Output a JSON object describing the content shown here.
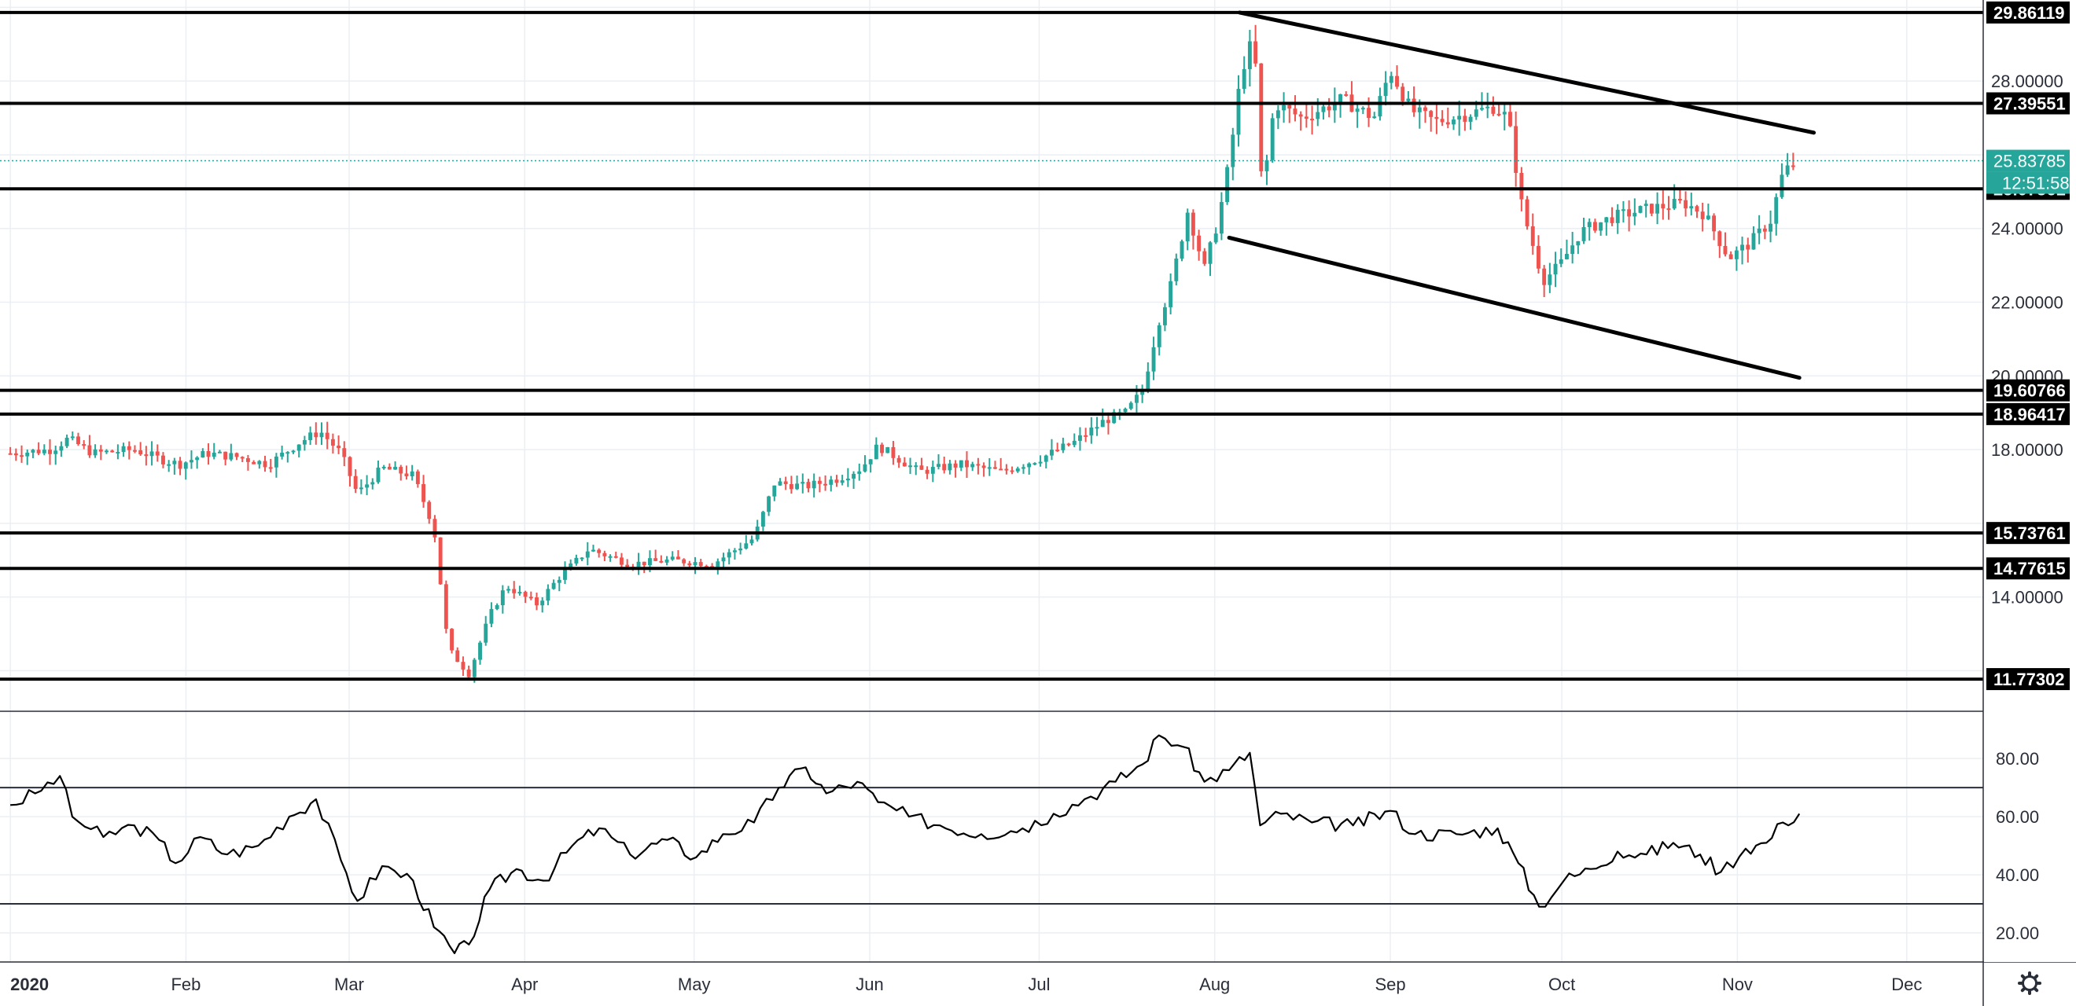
{
  "chart_data": {
    "type": "candlestick",
    "price_axis": {
      "range": [
        10.9,
        30.2
      ],
      "ticks": [
        "28.00000",
        "24.00000",
        "22.00000",
        "20.00000",
        "18.00000",
        "14.00000"
      ]
    },
    "current_price": {
      "label": "25.83785",
      "value": 25.83785,
      "timer": "12:51:58"
    },
    "levels": [
      {
        "label": "29.86119",
        "value": 29.86119
      },
      {
        "label": "27.39551",
        "value": 27.39551
      },
      {
        "label": "25.07561",
        "value": 25.07561
      },
      {
        "label": "19.60766",
        "value": 19.60766
      },
      {
        "label": "18.96417",
        "value": 18.96417
      },
      {
        "label": "15.73761",
        "value": 15.73761
      },
      {
        "label": "14.77615",
        "value": 14.77615
      },
      {
        "label": "11.77302",
        "value": 11.77302
      }
    ],
    "trendlines": [
      {
        "from": [
          2020.595,
          29.86
        ],
        "to": [
          2020.873,
          26.6
        ]
      },
      {
        "from": [
          2020.59,
          23.75
        ],
        "to": [
          2020.866,
          19.95
        ]
      }
    ],
    "time_axis": {
      "range": [
        2019.995,
        2020.955
      ],
      "labels": [
        {
          "text": "2020",
          "x": 2020.0
        },
        {
          "text": "Feb",
          "x": 2020.085
        },
        {
          "text": "Mar",
          "x": 2020.164
        },
        {
          "text": "Apr",
          "x": 2020.249
        },
        {
          "text": "May",
          "x": 2020.331
        },
        {
          "text": "Jun",
          "x": 2020.416
        },
        {
          "text": "Jul",
          "x": 2020.498
        },
        {
          "text": "Aug",
          "x": 2020.583
        },
        {
          "text": "Sep",
          "x": 2020.668
        },
        {
          "text": "Oct",
          "x": 2020.751
        },
        {
          "text": "Nov",
          "x": 2020.836
        },
        {
          "text": "Dec",
          "x": 2020.918
        }
      ]
    },
    "price_path": [
      [
        2020.0,
        17.9
      ],
      [
        2020.02,
        18.0
      ],
      [
        2020.028,
        18.3
      ],
      [
        2020.04,
        17.9
      ],
      [
        2020.06,
        18.0
      ],
      [
        2020.075,
        17.7
      ],
      [
        2020.082,
        17.6
      ],
      [
        2020.095,
        17.9
      ],
      [
        2020.11,
        17.8
      ],
      [
        2020.125,
        17.6
      ],
      [
        2020.14,
        18.2
      ],
      [
        2020.15,
        18.5
      ],
      [
        2020.16,
        17.9
      ],
      [
        2020.168,
        16.8
      ],
      [
        2020.18,
        17.5
      ],
      [
        2020.195,
        17.3
      ],
      [
        2020.205,
        15.9
      ],
      [
        2020.212,
        12.6
      ],
      [
        2020.222,
        11.9
      ],
      [
        2020.232,
        13.5
      ],
      [
        2020.24,
        14.3
      ],
      [
        2020.255,
        13.8
      ],
      [
        2020.265,
        14.5
      ],
      [
        2020.28,
        15.3
      ],
      [
        2020.3,
        14.9
      ],
      [
        2020.32,
        15.0
      ],
      [
        2020.34,
        14.9
      ],
      [
        2020.36,
        15.6
      ],
      [
        2020.37,
        17.1
      ],
      [
        2020.385,
        17.0
      ],
      [
        2020.4,
        17.2
      ],
      [
        2020.412,
        17.5
      ],
      [
        2020.42,
        18.1
      ],
      [
        2020.44,
        17.4
      ],
      [
        2020.46,
        17.6
      ],
      [
        2020.48,
        17.4
      ],
      [
        2020.5,
        17.8
      ],
      [
        2020.515,
        18.2
      ],
      [
        2020.53,
        18.8
      ],
      [
        2020.54,
        19.0
      ],
      [
        2020.548,
        19.6
      ],
      [
        2020.556,
        21.5
      ],
      [
        2020.562,
        22.5
      ],
      [
        2020.57,
        24.5
      ],
      [
        2020.578,
        22.9
      ],
      [
        2020.585,
        24.3
      ],
      [
        2020.59,
        25.8
      ],
      [
        2020.596,
        28.3
      ],
      [
        2020.602,
        29.2
      ],
      [
        2020.606,
        24.9
      ],
      [
        2020.612,
        27.4
      ],
      [
        2020.625,
        27.0
      ],
      [
        2020.645,
        27.5
      ],
      [
        2020.66,
        27.0
      ],
      [
        2020.668,
        28.3
      ],
      [
        2020.678,
        27.2
      ],
      [
        2020.69,
        26.9
      ],
      [
        2020.705,
        27.1
      ],
      [
        2020.718,
        27.3
      ],
      [
        2020.725,
        27.0
      ],
      [
        2020.732,
        24.5
      ],
      [
        2020.742,
        22.6
      ],
      [
        2020.75,
        23.0
      ],
      [
        2020.76,
        23.9
      ],
      [
        2020.775,
        24.3
      ],
      [
        2020.79,
        24.5
      ],
      [
        2020.8,
        24.6
      ],
      [
        2020.81,
        24.7
      ],
      [
        2020.82,
        24.4
      ],
      [
        2020.832,
        23.2
      ],
      [
        2020.842,
        23.6
      ],
      [
        2020.852,
        24.2
      ],
      [
        2020.858,
        25.5
      ],
      [
        2020.865,
        25.84
      ]
    ],
    "rsi": {
      "range": [
        10,
        96
      ],
      "ticks": [
        "80.00",
        "60.00",
        "40.00",
        "20.00"
      ],
      "bands": [
        70,
        30
      ],
      "values": [
        [
          2020.0,
          64
        ],
        [
          2020.012,
          68
        ],
        [
          2020.024,
          74
        ],
        [
          2020.03,
          60
        ],
        [
          2020.045,
          53
        ],
        [
          2020.06,
          57
        ],
        [
          2020.072,
          52
        ],
        [
          2020.08,
          44
        ],
        [
          2020.092,
          53
        ],
        [
          2020.105,
          47
        ],
        [
          2020.12,
          50
        ],
        [
          2020.135,
          60
        ],
        [
          2020.148,
          66
        ],
        [
          2020.16,
          45
        ],
        [
          2020.168,
          31
        ],
        [
          2020.18,
          43
        ],
        [
          2020.195,
          38
        ],
        [
          2020.205,
          22
        ],
        [
          2020.215,
          13
        ],
        [
          2020.222,
          16
        ],
        [
          2020.232,
          35
        ],
        [
          2020.245,
          42
        ],
        [
          2020.258,
          38
        ],
        [
          2020.272,
          50
        ],
        [
          2020.285,
          56
        ],
        [
          2020.3,
          47
        ],
        [
          2020.318,
          52
        ],
        [
          2020.332,
          46
        ],
        [
          2020.345,
          54
        ],
        [
          2020.36,
          58
        ],
        [
          2020.372,
          70
        ],
        [
          2020.385,
          77
        ],
        [
          2020.395,
          68
        ],
        [
          2020.41,
          72
        ],
        [
          2020.42,
          65
        ],
        [
          2020.435,
          60
        ],
        [
          2020.45,
          57
        ],
        [
          2020.47,
          54
        ],
        [
          2020.49,
          56
        ],
        [
          2020.505,
          61
        ],
        [
          2020.52,
          66
        ],
        [
          2020.535,
          72
        ],
        [
          2020.548,
          78
        ],
        [
          2020.556,
          88
        ],
        [
          2020.568,
          84
        ],
        [
          2020.578,
          72
        ],
        [
          2020.59,
          76
        ],
        [
          2020.6,
          82
        ],
        [
          2020.605,
          57
        ],
        [
          2020.615,
          61
        ],
        [
          2020.63,
          58
        ],
        [
          2020.65,
          57
        ],
        [
          2020.668,
          62
        ],
        [
          2020.68,
          54
        ],
        [
          2020.7,
          54
        ],
        [
          2020.72,
          56
        ],
        [
          2020.73,
          44
        ],
        [
          2020.74,
          29
        ],
        [
          2020.752,
          38
        ],
        [
          2020.765,
          42
        ],
        [
          2020.778,
          48
        ],
        [
          2020.792,
          47
        ],
        [
          2020.805,
          51
        ],
        [
          2020.818,
          47
        ],
        [
          2020.828,
          41
        ],
        [
          2020.84,
          49
        ],
        [
          2020.85,
          51
        ],
        [
          2020.858,
          58
        ],
        [
          2020.866,
          61
        ]
      ]
    },
    "colors": {
      "up": "#26a69a",
      "down": "#ef5350",
      "level_line": "#000000",
      "current_price": "#26a69a",
      "grid": "#ebeff4",
      "axis_text": "#2a2e39"
    }
  }
}
